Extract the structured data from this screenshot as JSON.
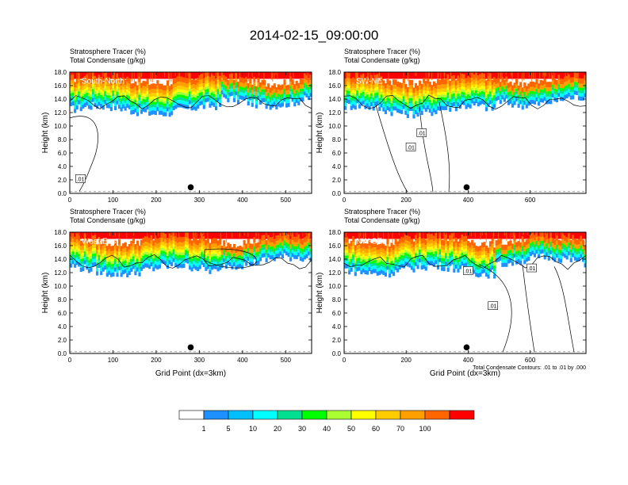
{
  "title": "2014-02-15_09:00:00",
  "colors": {
    "fill_levels": [
      "#ffffff",
      "#1e90ff",
      "#00bfff",
      "#00ffff",
      "#00e090",
      "#00ff00",
      "#aaff33",
      "#ffff00",
      "#ffcc00",
      "#ffa000",
      "#ff6600",
      "#ff0000"
    ]
  },
  "chart_data": [
    {
      "type": "heatmap",
      "panel": "South-North",
      "subtitle_1": "Stratosphere Tracer   (%)",
      "subtitle_2": "Total Condensate   (g/kg)",
      "ylabel": "Height (km)",
      "xlabel": "",
      "xlim": [
        0,
        560
      ],
      "ylim": [
        0,
        18
      ],
      "xticks": [
        0,
        100,
        200,
        300,
        400,
        500
      ],
      "yticks": [
        "0.0",
        "2.0",
        "4.0",
        "6.0",
        "8.0",
        "10.0",
        "12.0",
        "14.0",
        "16.0",
        "18.0"
      ],
      "marker_x": 280,
      "contour_labels": [
        {
          "text": ".01",
          "x": 25,
          "y": 2.2
        }
      ]
    },
    {
      "type": "heatmap",
      "panel": "SW-NE",
      "subtitle_1": "Stratosphere Tracer   (%)",
      "subtitle_2": "Total Condensate   (g/kg)",
      "ylabel": "Height (km)",
      "xlabel": "",
      "xlim": [
        0,
        780
      ],
      "ylim": [
        0,
        18
      ],
      "xticks": [
        0,
        200,
        400,
        600
      ],
      "yticks": [
        "0.0",
        "2.0",
        "4.0",
        "6.0",
        "8.0",
        "10.0",
        "12.0",
        "14.0",
        "16.0",
        "18.0"
      ],
      "marker_x": 395,
      "contour_labels": [
        {
          "text": ".01",
          "x": 250,
          "y": 9.0
        },
        {
          "text": ".01",
          "x": 215,
          "y": 6.9
        }
      ]
    },
    {
      "type": "heatmap",
      "panel": "West-East",
      "subtitle_1": "Stratosphere Tracer   (%)",
      "subtitle_2": "Total Condensate   (g/kg)",
      "ylabel": "Height (km)",
      "xlabel": "Grid Point (dx=3km)",
      "xlim": [
        0,
        560
      ],
      "ylim": [
        0,
        18
      ],
      "xticks": [
        0,
        100,
        200,
        300,
        400,
        500
      ],
      "yticks": [
        "0.0",
        "2.0",
        "4.0",
        "6.0",
        "8.0",
        "10.0",
        "12.0",
        "14.0",
        "16.0",
        "18.0"
      ],
      "marker_x": 280,
      "contour_labels": []
    },
    {
      "type": "heatmap",
      "panel": "NW-SE",
      "subtitle_1": "Stratosphere Tracer   (%)",
      "subtitle_2": "Total Condensate   (g/kg)",
      "ylabel": "Height (km)",
      "xlabel": "Grid Point (dx=3km)",
      "xlim": [
        0,
        780
      ],
      "ylim": [
        0,
        18
      ],
      "xticks": [
        0,
        200,
        400,
        600
      ],
      "yticks": [
        "0.0",
        "2.0",
        "4.0",
        "6.0",
        "8.0",
        "10.0",
        "12.0",
        "14.0",
        "16.0",
        "18.0"
      ],
      "marker_x": 395,
      "contour_labels": [
        {
          "text": ".01",
          "x": 400,
          "y": 12.3
        },
        {
          "text": ".01",
          "x": 605,
          "y": 12.7
        },
        {
          "text": ".01",
          "x": 480,
          "y": 7.1
        }
      ],
      "contour_info": "Total Condensate Contours: .01 to .01 by .000"
    }
  ],
  "colorbar": {
    "labels": [
      "1",
      "5",
      "10",
      "20",
      "30",
      "40",
      "50",
      "60",
      "70",
      "100"
    ]
  }
}
